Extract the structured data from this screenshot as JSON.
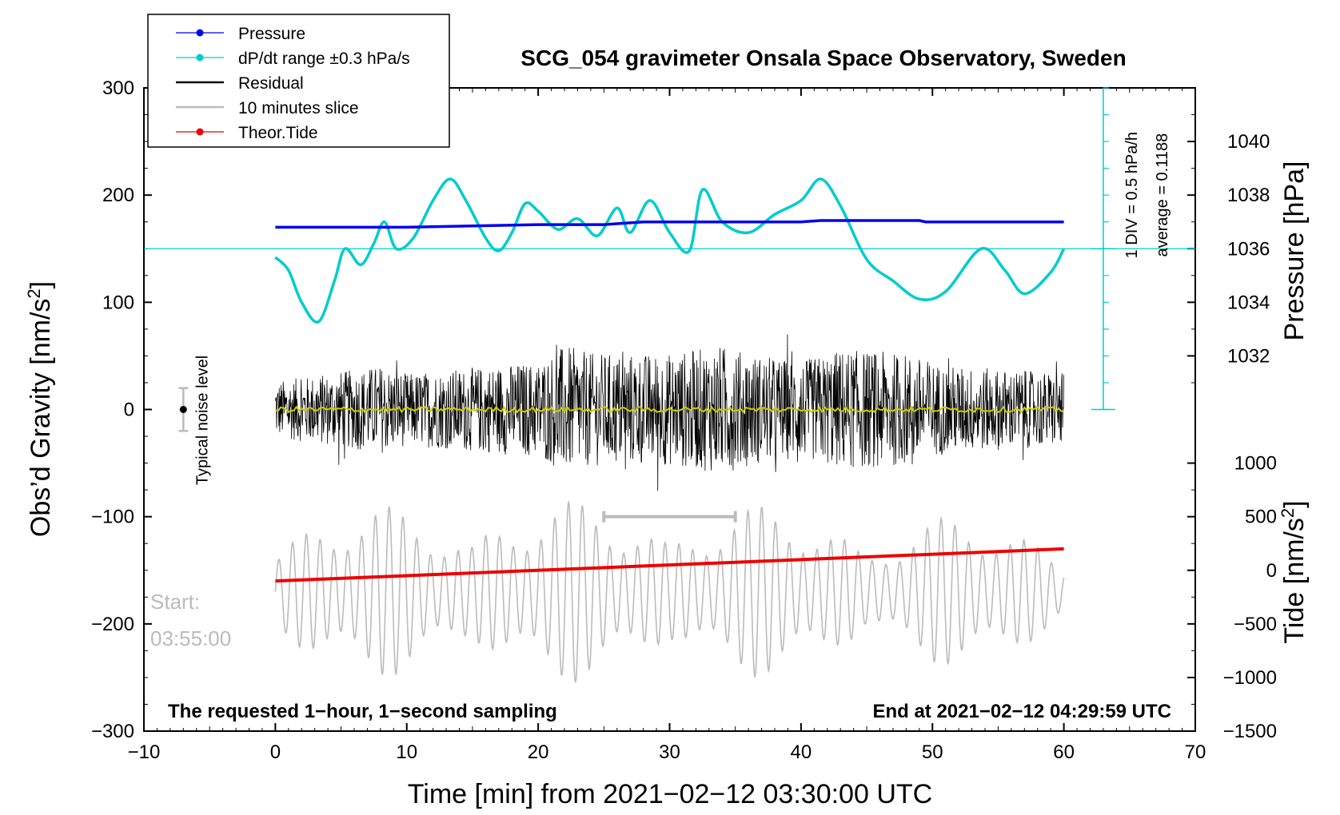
{
  "chart_data": {
    "type": "line",
    "title": "SCG_054 gravimeter Onsala Space Observatory, Sweden",
    "xlabel": "Time [min] from 2021−02−12 03:30:00 UTC",
    "ylabel_left": "Obs’d Gravity [nm/s²]",
    "ylabel_right_top": "Pressure [hPa]",
    "ylabel_right_bottom": "Tide [nm/s²]",
    "xlim": [
      -10,
      70
    ],
    "ylim": [
      -300,
      300
    ],
    "x_ticks": [
      "−10",
      "0",
      "10",
      "20",
      "30",
      "40",
      "50",
      "60",
      "70"
    ],
    "x_tick_values": [
      -10,
      0,
      10,
      20,
      30,
      40,
      50,
      60,
      70
    ],
    "y_ticks_left": [
      "300",
      "200",
      "100",
      "0",
      "−100",
      "−200",
      "−300"
    ],
    "y_tick_values_left": [
      300,
      200,
      100,
      0,
      -100,
      -200,
      -300
    ],
    "pressure_axis": {
      "ticks": [
        "1040",
        "1038",
        "1036",
        "1034",
        "1032"
      ],
      "tick_values": [
        1040,
        1038,
        1036,
        1034,
        1032
      ],
      "mapping_note": "1036 hPa at gravity 150, 2 hPa per 50 gravity units"
    },
    "tide_axis": {
      "ticks": [
        "1000",
        "500",
        "0",
        "−500",
        "−1000",
        "−1500"
      ],
      "tick_values": [
        1000,
        500,
        0,
        -500,
        -1000,
        -1500
      ],
      "mapping_note": "0 nm/s² at gravity -150, 500 per 50 gravity units"
    },
    "legend": [
      {
        "label": "Pressure",
        "color": "#0000ee",
        "style": "line-dot"
      },
      {
        "label": "dP/dt range ±0.3 hPa/s",
        "color": "#00cccc",
        "style": "line-dot"
      },
      {
        "label": "Residual",
        "color": "#000000",
        "style": "line"
      },
      {
        "label": "10 minutes slice",
        "color": "#bbbbbb",
        "style": "line"
      },
      {
        "label": "Theor.Tide",
        "color": "#ee0000",
        "style": "line-dot"
      }
    ],
    "series": [
      {
        "name": "Pressure",
        "color": "#0000ee",
        "units": "hPa",
        "x": [
          0,
          5,
          10,
          15,
          20,
          25,
          28,
          30,
          35,
          40,
          41.5,
          45,
          49,
          49.5,
          55,
          60
        ],
        "values": [
          1036.8,
          1036.8,
          1036.8,
          1036.85,
          1036.9,
          1036.9,
          1037.0,
          1037.0,
          1037.0,
          1037.0,
          1037.05,
          1037.05,
          1037.05,
          1037.0,
          1037.0,
          1037.0
        ]
      },
      {
        "name": "dP/dt range ±0.3 hPa/s",
        "color": "#00cccc",
        "units": "gravity axis",
        "x": [
          0,
          1,
          2,
          3.3,
          4.5,
          5.3,
          6.5,
          7.5,
          8.3,
          9.2,
          10.5,
          12,
          13.3,
          14.5,
          16,
          17,
          18,
          19,
          20,
          21.5,
          23,
          24.5,
          26,
          27,
          28.5,
          30,
          31.5,
          32.5,
          34,
          36,
          38,
          40,
          41.5,
          43,
          45,
          47,
          49,
          51,
          53.7,
          55.5,
          57,
          59,
          60
        ],
        "values": [
          142,
          130,
          100,
          82,
          120,
          150,
          135,
          155,
          175,
          150,
          160,
          195,
          215,
          195,
          160,
          148,
          165,
          192,
          185,
          168,
          178,
          162,
          188,
          165,
          195,
          165,
          148,
          205,
          175,
          165,
          182,
          195,
          215,
          190,
          140,
          120,
          103,
          110,
          150,
          130,
          108,
          128,
          150
        ]
      },
      {
        "name": "Residual",
        "color": "#000000",
        "note": "1-second residual noise, drawn procedurally with envelope amplitude",
        "x": [
          0,
          8,
          10,
          20,
          22,
          24,
          30,
          34,
          36,
          40,
          43,
          48,
          51,
          60
        ],
        "values": [
          35,
          55,
          45,
          60,
          80,
          70,
          70,
          80,
          70,
          60,
          75,
          70,
          55,
          45
        ]
      },
      {
        "name": "Residual (smoothed)",
        "color": "#cccc00",
        "x": [
          0,
          60
        ],
        "values": [
          0,
          0
        ]
      },
      {
        "name": "10 minutes slice",
        "color": "#bbbbbb",
        "note": "oscillating trace centred near gravity -170 with amplitude 30-85",
        "x": [
          0,
          10,
          20,
          30,
          40,
          50,
          60
        ],
        "values": [
          -170,
          -170,
          -170,
          -170,
          -170,
          -170,
          -170
        ]
      },
      {
        "name": "Theor.Tide",
        "color": "#ee0000",
        "units": "nm/s²",
        "x": [
          0,
          60
        ],
        "values": [
          -100,
          200
        ]
      }
    ],
    "noise_level": {
      "label": "Typical noise level",
      "x": -7,
      "value": 0,
      "range": [
        -20,
        20
      ]
    },
    "slice_marker": {
      "x_start": 25,
      "x_end": 35,
      "value": -100
    },
    "dpdt_scale": {
      "div_label": "1 DIV = 0.5 hPa/h",
      "average_label": "average = 0.1188",
      "x": 63,
      "y_range": [
        0,
        300
      ],
      "ref_value": 150
    }
  },
  "notes": {
    "sampling": "The requested 1−hour, 1−second sampling",
    "end": "End at 2021−02−12 04:29:59 UTC",
    "start_label": "Start:",
    "start_time": "03:55:00"
  }
}
